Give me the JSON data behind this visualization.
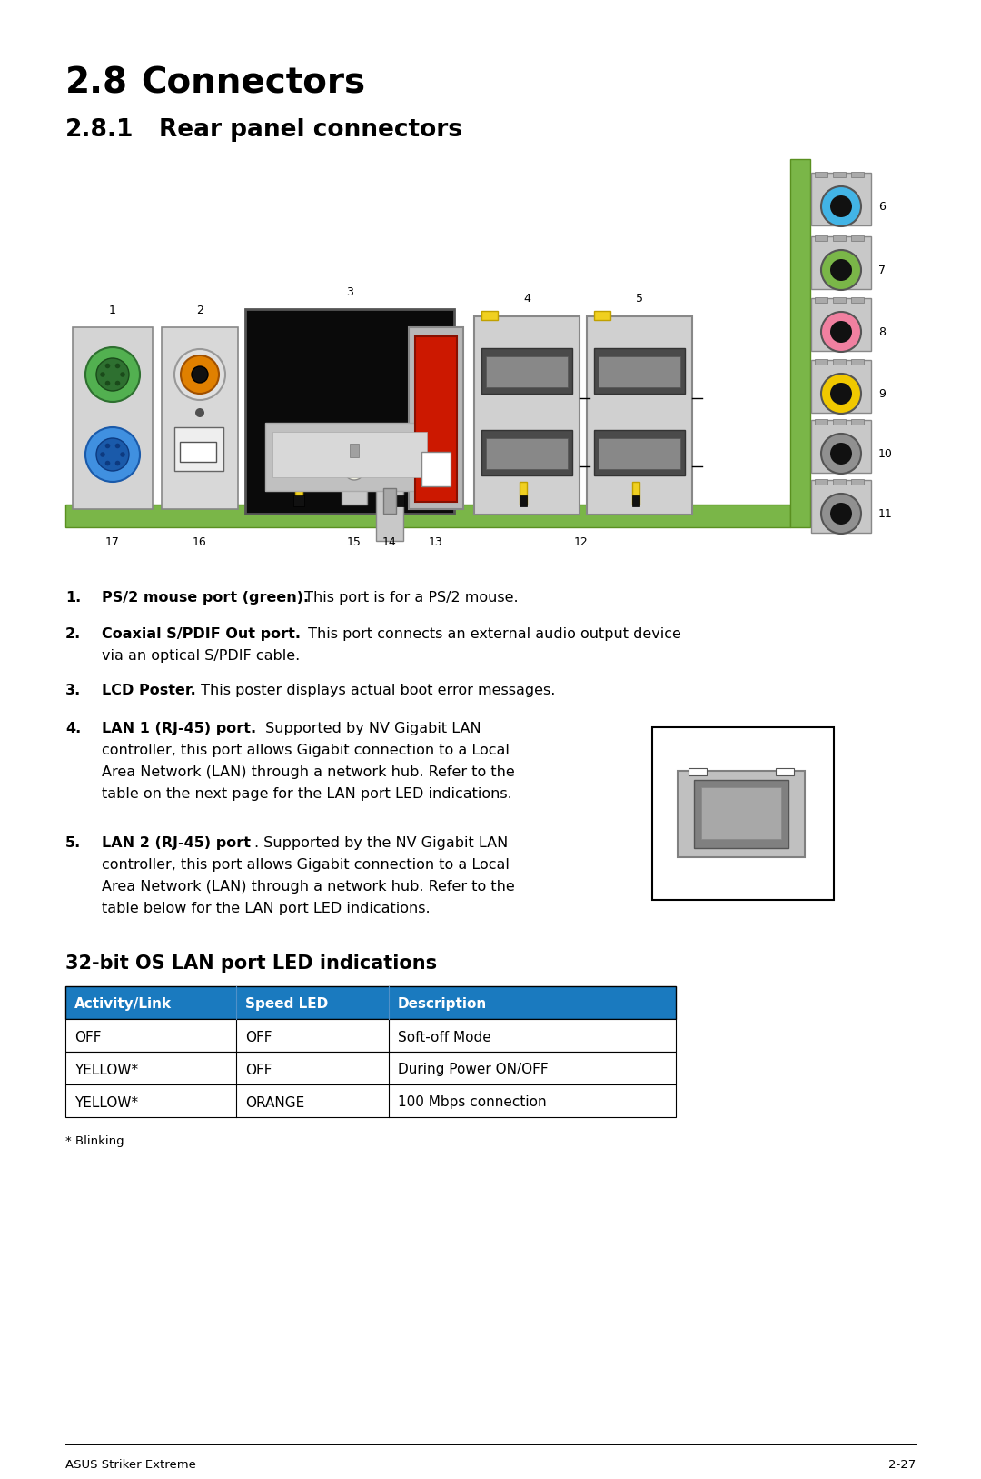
{
  "title_main": "2.8",
  "title_main2": "Connectors",
  "title_sub": "2.8.1",
  "title_sub2": "Rear panel connectors",
  "section_title": "32-bit OS LAN port LED indications",
  "table_header": [
    "Activity/Link",
    "Speed LED",
    "Description"
  ],
  "table_rows": [
    [
      "OFF",
      "OFF",
      "Soft-off Mode"
    ],
    [
      "YELLOW*",
      "OFF",
      "During Power ON/OFF"
    ],
    [
      "YELLOW*",
      "ORANGE",
      "100 Mbps connection"
    ]
  ],
  "table_note": "* Blinking",
  "footer_left": "ASUS Striker Extreme",
  "footer_right": "2-27",
  "header_color": "#1a7abf",
  "bg_color": "#ffffff",
  "pcb_green": "#7ab648",
  "pcb_green_dark": "#5a9020",
  "jack_colors": [
    "#42b4e6",
    "#7ab648",
    "#f080a0",
    "#f0c800",
    "#909090",
    "#909090"
  ],
  "jack_labels": [
    "6",
    "7",
    "8",
    "9",
    "10",
    "11"
  ]
}
